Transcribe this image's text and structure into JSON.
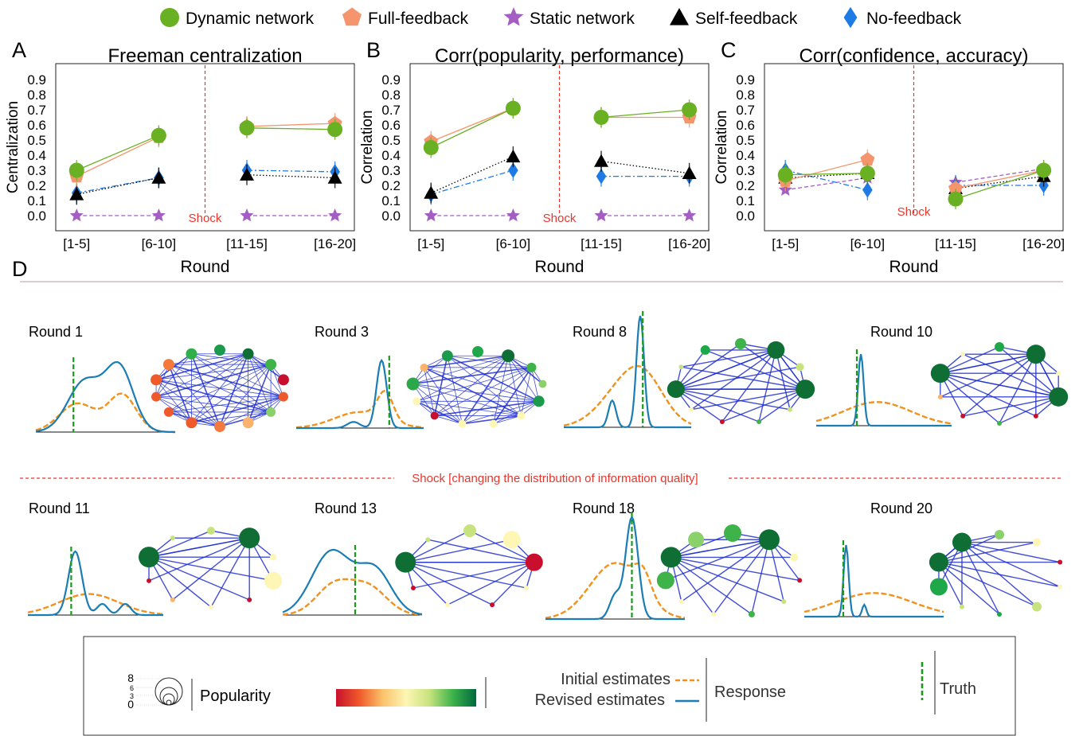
{
  "legend": {
    "items": [
      {
        "name": "Dynamic network",
        "color": "#6ab023",
        "marker": "circle"
      },
      {
        "name": "Full-feedback",
        "color": "#f5956e",
        "marker": "pentagon"
      },
      {
        "name": "Static network",
        "color": "#a45ec3",
        "marker": "star"
      },
      {
        "name": "Self-feedback",
        "color": "#000000",
        "marker": "triangle"
      },
      {
        "name": "No-feedback",
        "color": "#1e7be6",
        "marker": "diamond"
      }
    ]
  },
  "chart_data": [
    {
      "panel": "A",
      "type": "line",
      "title": "Freeman centralization",
      "xlabel": "Round",
      "ylabel": "Centralization",
      "categories": [
        "[1-5]",
        "[6-10]",
        "[11-15]",
        "[16-20]"
      ],
      "ylim": [
        0.0,
        0.9
      ],
      "yticks": [
        "0.0",
        "0.1",
        "0.2",
        "0.3",
        "0.4",
        "0.5",
        "0.6",
        "0.7",
        "0.8",
        "0.9"
      ],
      "shock_label": "Shock",
      "series": [
        {
          "name": "Dynamic network",
          "values": [
            0.3,
            0.53,
            0.58,
            0.57
          ]
        },
        {
          "name": "Full-feedback",
          "values": [
            0.26,
            0.52,
            0.59,
            0.61
          ]
        },
        {
          "name": "Static network",
          "values": [
            0.0,
            0.0,
            0.0,
            0.0
          ]
        },
        {
          "name": "Self-feedback",
          "values": [
            0.14,
            0.25,
            0.27,
            0.25
          ]
        },
        {
          "name": "No-feedback",
          "values": [
            0.15,
            0.25,
            0.3,
            0.29
          ]
        }
      ]
    },
    {
      "panel": "B",
      "type": "line",
      "title": "Corr(popularity, performance)",
      "xlabel": "Round",
      "ylabel": "Correlation",
      "categories": [
        "[1-5]",
        "[6-10]",
        "[11-15]",
        "[16-20]"
      ],
      "ylim": [
        0.0,
        0.9
      ],
      "yticks": [
        "0.0",
        "0.1",
        "0.2",
        "0.3",
        "0.4",
        "0.5",
        "0.6",
        "0.7",
        "0.8",
        "0.9"
      ],
      "shock_label": "Shock",
      "series": [
        {
          "name": "Dynamic network",
          "values": [
            0.45,
            0.71,
            0.65,
            0.7
          ]
        },
        {
          "name": "Full-feedback",
          "values": [
            0.49,
            0.71,
            0.65,
            0.65
          ]
        },
        {
          "name": "Static network",
          "values": [
            0.0,
            0.0,
            0.0,
            0.0
          ]
        },
        {
          "name": "Self-feedback",
          "values": [
            0.15,
            0.39,
            0.36,
            0.28
          ]
        },
        {
          "name": "No-feedback",
          "values": [
            0.14,
            0.3,
            0.26,
            0.26
          ]
        }
      ]
    },
    {
      "panel": "C",
      "type": "line",
      "title": "Corr(confidence, accuracy)",
      "xlabel": "Round",
      "ylabel": "Correlation",
      "categories": [
        "[1-5]",
        "[6-10]",
        "[11-15]",
        "[16-20]"
      ],
      "ylim": [
        0.0,
        0.9
      ],
      "yticks": [
        "0.0",
        "0.1",
        "0.2",
        "0.3",
        "0.4",
        "0.5",
        "0.6",
        "0.7",
        "0.8",
        "0.9"
      ],
      "shock_label": "Shock",
      "series": [
        {
          "name": "Dynamic network",
          "values": [
            0.27,
            0.28,
            0.11,
            0.3
          ]
        },
        {
          "name": "Full-feedback",
          "values": [
            0.23,
            0.37,
            0.18,
            0.3
          ]
        },
        {
          "name": "Static network",
          "values": [
            0.17,
            0.25,
            0.22,
            0.31
          ]
        },
        {
          "name": "Self-feedback",
          "values": [
            0.25,
            0.28,
            0.18,
            0.26
          ]
        },
        {
          "name": "No-feedback",
          "values": [
            0.3,
            0.17,
            0.2,
            0.2
          ]
        }
      ]
    }
  ],
  "panel_letters": [
    "A",
    "B",
    "C",
    "D"
  ],
  "rounds_top": [
    "Round 1",
    "Round 3",
    "Round 8",
    "Round 10"
  ],
  "rounds_bottom": [
    "Round 11",
    "Round 13",
    "Round 18",
    "Round 20"
  ],
  "shock_banner": "Shock [changing the distribution of information quality]",
  "key": {
    "popularity_label": "Popularity",
    "popularity_ticks": [
      "8",
      "6",
      "3",
      "0"
    ],
    "initial_label": "Initial estimates",
    "revised_label": "Revised estimates",
    "response_label": "Response",
    "truth_label": "Truth",
    "colorbar_stops": [
      "#c8102e",
      "#ef5a2a",
      "#fbc36b",
      "#fdf6b4",
      "#c7e37d",
      "#3db34a",
      "#00693e"
    ]
  },
  "colors": {
    "shock": "#e8362d",
    "initial": "#f0921c",
    "revised": "#1b7db3",
    "truth": "#1a9a1a",
    "network_edge": "#2230d0"
  }
}
